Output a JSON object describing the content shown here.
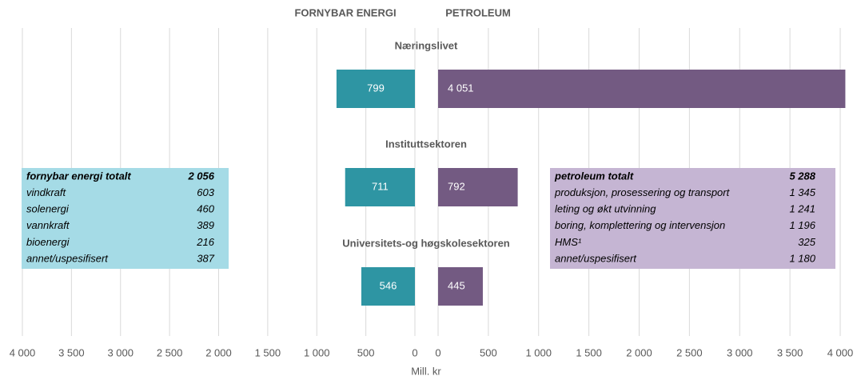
{
  "chart_data": {
    "type": "bar",
    "orientation": "horizontal",
    "categories": [
      "Næringslivet",
      "Instituttsektoren",
      "Universitets-og høgskolesektoren"
    ],
    "series": [
      {
        "name": "FORNYBAR ENERGI",
        "color": "#2e95a3",
        "axis": "x",
        "values": [
          799,
          711,
          546
        ],
        "value_labels": [
          "799",
          "711",
          "546"
        ]
      },
      {
        "name": "PETROLEUM",
        "color": "#735a82",
        "axis": "x2",
        "values": [
          4051,
          792,
          445
        ],
        "value_labels": [
          "4 051",
          "792",
          "445"
        ]
      }
    ],
    "xlim": [
      4000,
      0
    ],
    "xticks": [
      {
        "value": 4000,
        "label": "4 000"
      },
      {
        "value": 3500,
        "label": "3 500"
      },
      {
        "value": 3000,
        "label": "3 000"
      },
      {
        "value": 2500,
        "label": "2 500"
      },
      {
        "value": 2000,
        "label": "2 000"
      },
      {
        "value": 1500,
        "label": "1 500"
      },
      {
        "value": 1000,
        "label": "1 000"
      },
      500,
      0
    ],
    "x2lim": [
      0,
      4000
    ],
    "x2ticks": [
      0,
      500,
      {
        "value": 1000,
        "label": "1 000"
      },
      {
        "value": 1500,
        "label": "1 500"
      },
      {
        "value": 2000,
        "label": "2 000"
      },
      {
        "value": 2500,
        "label": "2 500"
      },
      {
        "value": 3000,
        "label": "3 000"
      },
      {
        "value": 3500,
        "label": "3 500"
      },
      {
        "value": 4000,
        "label": "4 000"
      }
    ],
    "xlabel": "Mill. kr",
    "grid": true,
    "legend": "top",
    "boxes": [
      {
        "color": "#a5dbe6",
        "rows": [
          [
            "fornybar energi totalt",
            "2 056"
          ],
          [
            "vindkraft",
            "603"
          ],
          [
            "solenergi",
            "460"
          ],
          [
            "vannkraft",
            "389"
          ],
          [
            "bioenergi",
            "216"
          ],
          [
            "annet/uspesifisert",
            "387"
          ]
        ]
      },
      {
        "color": "#c5b5d3",
        "rows": [
          [
            "petroleum totalt",
            "5 288"
          ],
          [
            "produksjon, prosessering og transport",
            "1 345"
          ],
          [
            "leting og økt utvinning",
            "1 241"
          ],
          [
            "boring, komplettering og intervensjon",
            "1 196"
          ],
          [
            "HMS¹",
            "325"
          ],
          [
            "annet/uspesifisert",
            "1 180"
          ]
        ]
      }
    ]
  }
}
